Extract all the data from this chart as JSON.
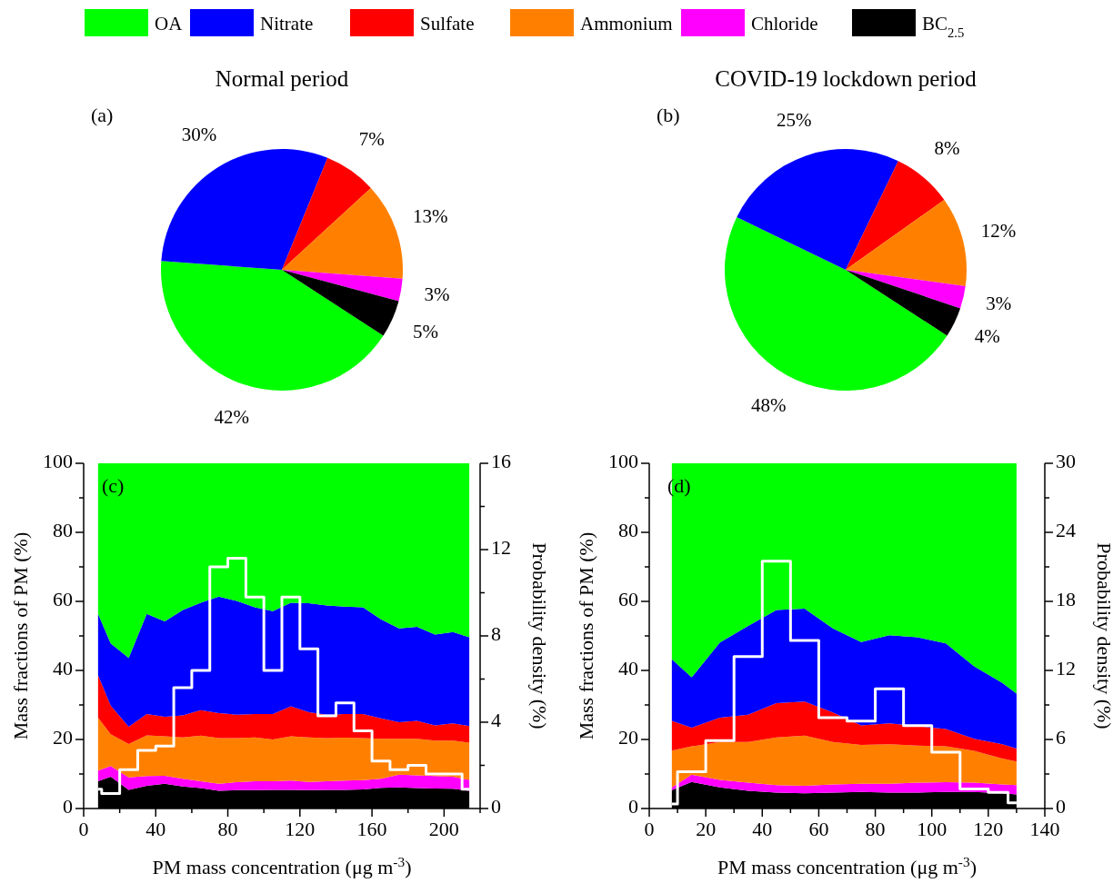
{
  "chart_data": [
    {
      "type": "pie",
      "title": "Normal period",
      "annotations": [
        "(a)"
      ],
      "legend": "top",
      "categories": [
        "OA",
        "Nitrate",
        "Sulfate",
        "Ammonium",
        "Chloride",
        "BC$_{2.5}$"
      ],
      "values": [
        42,
        30,
        7,
        13,
        3,
        5
      ],
      "value_labels": [
        "42%",
        "30%",
        "7%",
        "13%",
        "3%",
        "5%"
      ],
      "colors": [
        "#00ff00",
        "#0000ff",
        "#ff0000",
        "#ff8000",
        "#ff00ff",
        "#000000"
      ]
    },
    {
      "type": "pie",
      "title": "COVID-19 lockdown period",
      "annotations": [
        "(b)"
      ],
      "categories": [
        null,
        null,
        null,
        null,
        null,
        null
      ],
      "values": [
        48,
        25,
        8,
        12,
        3,
        4
      ],
      "value_labels": [
        "48%",
        "25%",
        "8%",
        "12%",
        "3%",
        "4%"
      ],
      "colors": [
        "#00ff00",
        "#0000ff",
        "#ff0000",
        "#ff8000",
        "#ff00ff",
        "#000000"
      ]
    },
    {
      "type": "area",
      "stacked": true,
      "annotations": [
        "(c)"
      ],
      "xlabel": "PM mass concentration (μg m$^{-3}$)",
      "ylabel": "Mass fractions of PM (%)",
      "y2label": "Probability density (%)",
      "xlim": [
        0,
        220
      ],
      "xticks": [
        0,
        {
          "value": 20,
          "label": null
        },
        40,
        {
          "value": 60,
          "label": null
        },
        80,
        {
          "value": 100,
          "label": null
        },
        120,
        {
          "value": 140,
          "label": null
        },
        160,
        {
          "value": 180,
          "label": null
        },
        200,
        {
          "value": 220,
          "label": null
        }
      ],
      "ylim": [
        0,
        100
      ],
      "yticks": [
        0,
        {
          "value": 10,
          "label": null
        },
        20,
        {
          "value": 30,
          "label": null
        },
        40,
        {
          "value": 50,
          "label": null
        },
        60,
        {
          "value": 70,
          "label": null
        },
        80,
        {
          "value": 90,
          "label": null
        },
        100
      ],
      "y2lim": [
        0,
        16
      ],
      "y2ticks": [
        0,
        {
          "value": 2,
          "label": null
        },
        4,
        {
          "value": 6,
          "label": null
        },
        8,
        {
          "value": 10,
          "label": null
        },
        12,
        {
          "value": 14,
          "label": null
        },
        16
      ],
      "x": [
        8,
        15,
        25,
        35,
        45,
        55,
        65,
        75,
        85,
        95,
        105,
        115,
        125,
        135,
        145,
        155,
        165,
        175,
        185,
        195,
        205,
        214
      ],
      "series": [
        {
          "color": "#000000",
          "values": [
            7.9,
            9.2,
            5.4,
            6.6,
            7.2,
            6.4,
            5.9,
            5.1,
            5.3,
            5.3,
            5.4,
            5.4,
            5.3,
            5.4,
            5.4,
            5.5,
            6.0,
            6.1,
            5.9,
            5.8,
            5.7,
            5.1
          ]
        },
        {
          "color": "#ff00ff",
          "values": [
            3.1,
            3.1,
            3.6,
            2.8,
            2.3,
            2.2,
            2.0,
            2.1,
            2.3,
            2.6,
            2.5,
            2.7,
            2.4,
            2.5,
            2.7,
            2.7,
            2.6,
            3.7,
            3.7,
            3.6,
            3.5,
            3.2
          ]
        },
        {
          "color": "#ff8000",
          "values": [
            15.3,
            9.2,
            9.7,
            11.8,
            11.4,
            12.0,
            13.2,
            13.2,
            12.8,
            12.7,
            12.1,
            12.8,
            12.9,
            12.5,
            12.4,
            12.2,
            11.6,
            10.4,
            10.6,
            10.3,
            10.5,
            10.8
          ]
        },
        {
          "color": "#ff0000",
          "values": [
            12.3,
            8.3,
            5.0,
            6.2,
            5.7,
            6.4,
            7.4,
            7.2,
            6.8,
            6.8,
            7.4,
            8.7,
            7.3,
            6.8,
            6.9,
            7.0,
            5.9,
            4.8,
            5.2,
            4.4,
            5.0,
            4.8
          ]
        },
        {
          "color": "#0000ff",
          "values": [
            17.8,
            18.0,
            19.9,
            29.0,
            27.6,
            30.5,
            31.1,
            33.8,
            32.9,
            30.9,
            29.8,
            30.0,
            31.6,
            31.6,
            31.1,
            30.9,
            28.7,
            27.2,
            27.2,
            26.3,
            26.4,
            25.7
          ]
        },
        {
          "color": "#00ff00",
          "values": [
            43.6,
            52.2,
            56.4,
            43.6,
            45.8,
            42.5,
            40.4,
            38.6,
            39.9,
            41.7,
            42.8,
            40.4,
            40.5,
            41.2,
            41.5,
            41.7,
            45.2,
            47.8,
            47.4,
            49.6,
            48.9,
            50.4
          ]
        },
        {
          "type": "step",
          "axis": "y2",
          "color": "#ffffff",
          "x": [
            8,
            10,
            20,
            30,
            40,
            50,
            60,
            70,
            80,
            90,
            100,
            110,
            120,
            130,
            140,
            150,
            160,
            170,
            180,
            190,
            200,
            210,
            214
          ],
          "values": [
            0.9,
            0.7,
            1.8,
            2.7,
            2.9,
            5.6,
            6.4,
            11.2,
            11.6,
            9.8,
            6.4,
            9.8,
            7.4,
            4.3,
            4.9,
            3.6,
            2.2,
            1.8,
            2.0,
            1.6,
            1.6,
            0.9,
            0.9
          ]
        }
      ]
    },
    {
      "type": "area",
      "stacked": true,
      "annotations": [
        "(d)"
      ],
      "xlabel": "PM mass concentration (μg m$^{-3}$)",
      "ylabel": "Mass fractions of PM (%)",
      "y2label": "Probability density (%)",
      "xlim": [
        0,
        140
      ],
      "xticks": [
        0,
        {
          "value": 10,
          "label": null
        },
        20,
        {
          "value": 30,
          "label": null
        },
        40,
        {
          "value": 50,
          "label": null
        },
        60,
        {
          "value": 70,
          "label": null
        },
        80,
        {
          "value": 90,
          "label": null
        },
        100,
        {
          "value": 110,
          "label": null
        },
        120,
        {
          "value": 130,
          "label": null
        },
        140
      ],
      "ylim": [
        0,
        100
      ],
      "yticks": [
        0,
        {
          "value": 10,
          "label": null
        },
        20,
        {
          "value": 30,
          "label": null
        },
        40,
        {
          "value": 50,
          "label": null
        },
        60,
        {
          "value": 70,
          "label": null
        },
        80,
        {
          "value": 90,
          "label": null
        },
        100
      ],
      "y2lim": [
        0,
        30
      ],
      "y2ticks": [
        0,
        {
          "value": 3,
          "label": null
        },
        6,
        {
          "value": 9,
          "label": null
        },
        12,
        {
          "value": 15,
          "label": null
        },
        18,
        {
          "value": 21,
          "label": null
        },
        24,
        {
          "value": 27,
          "label": null
        },
        30
      ],
      "x": [
        8,
        15,
        25,
        35,
        45,
        55,
        65,
        75,
        85,
        95,
        105,
        115,
        125,
        130
      ],
      "series": [
        {
          "color": "#000000",
          "values": [
            5.3,
            7.7,
            6.1,
            5.1,
            4.6,
            4.4,
            4.6,
            4.8,
            4.6,
            4.6,
            4.8,
            4.8,
            4.4,
            4.1
          ]
        },
        {
          "color": "#ff00ff",
          "values": [
            0.8,
            2.1,
            2.2,
            2.4,
            2.2,
            2.2,
            2.4,
            2.4,
            2.6,
            2.9,
            2.8,
            2.7,
            2.6,
            2.7
          ]
        },
        {
          "color": "#ff8000",
          "values": [
            10.7,
            8.2,
            11.0,
            11.8,
            13.8,
            14.5,
            12.3,
            11.2,
            11.4,
            10.7,
            10.4,
            9.2,
            7.5,
            6.8
          ]
        },
        {
          "color": "#ff0000",
          "values": [
            8.6,
            5.4,
            7.0,
            7.9,
            9.9,
            9.9,
            8.5,
            5.7,
            6.1,
            5.7,
            5.0,
            3.5,
            4.1,
            3.8
          ]
        },
        {
          "color": "#0000ff",
          "values": [
            17.8,
            14.6,
            21.8,
            25.7,
            27.0,
            26.9,
            24.4,
            24.1,
            25.5,
            25.7,
            24.8,
            21.0,
            17.8,
            15.9
          ]
        },
        {
          "color": "#00ff00",
          "values": [
            56.8,
            62.0,
            51.9,
            47.1,
            42.5,
            42.1,
            47.8,
            51.8,
            49.8,
            50.4,
            52.2,
            58.8,
            63.6,
            66.7
          ]
        },
        {
          "type": "step",
          "axis": "y2",
          "color": "#ffffff",
          "x": [
            8,
            10,
            20,
            30,
            40,
            50,
            60,
            70,
            80,
            90,
            100,
            110,
            120,
            127,
            130
          ],
          "values": [
            0.4,
            3.2,
            5.9,
            13.2,
            21.5,
            14.6,
            7.9,
            7.6,
            10.4,
            7.2,
            4.9,
            1.7,
            1.4,
            0.5,
            0.5
          ]
        }
      ]
    }
  ]
}
